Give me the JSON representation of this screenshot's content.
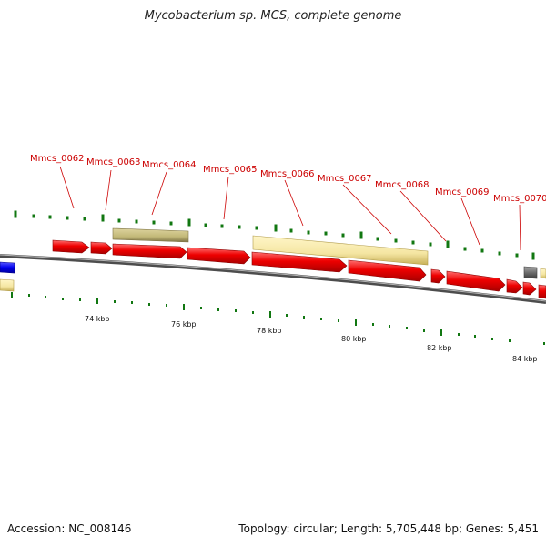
{
  "title": "Mycobacterium sp. MCS, complete genome",
  "footer": {
    "accession": "Accession: NC_008146",
    "summary": "Topology: circular; Length: 5,705,448 bp; Genes: 5,451"
  },
  "colors": {
    "cds": "#ee0000",
    "cds_light": "#ff6a6a",
    "rna": "#0000ee",
    "misc": "#6e6e6e",
    "pale_feature": "#f5e6a3",
    "pale_feature_dark": "#c8b25a",
    "olive_feature": "#c9bf84",
    "olive_feature_dark": "#8d8250",
    "backbone": "#666666",
    "tick": "#117711",
    "label": "#cc0000"
  },
  "map_data": {
    "bp_per_kbp": 1000,
    "axis_ticks_kbp": [
      "74 kbp",
      "76 kbp",
      "78 kbp",
      "80 kbp",
      "82 kbp",
      "84 kbp"
    ],
    "gene_labels": [
      "Mmcs_0062",
      "Mmcs_0063",
      "Mmcs_0064",
      "Mmcs_0065",
      "Mmcs_0066",
      "Mmcs_0067",
      "Mmcs_0068",
      "Mmcs_0069",
      "Mmcs_0070"
    ]
  }
}
